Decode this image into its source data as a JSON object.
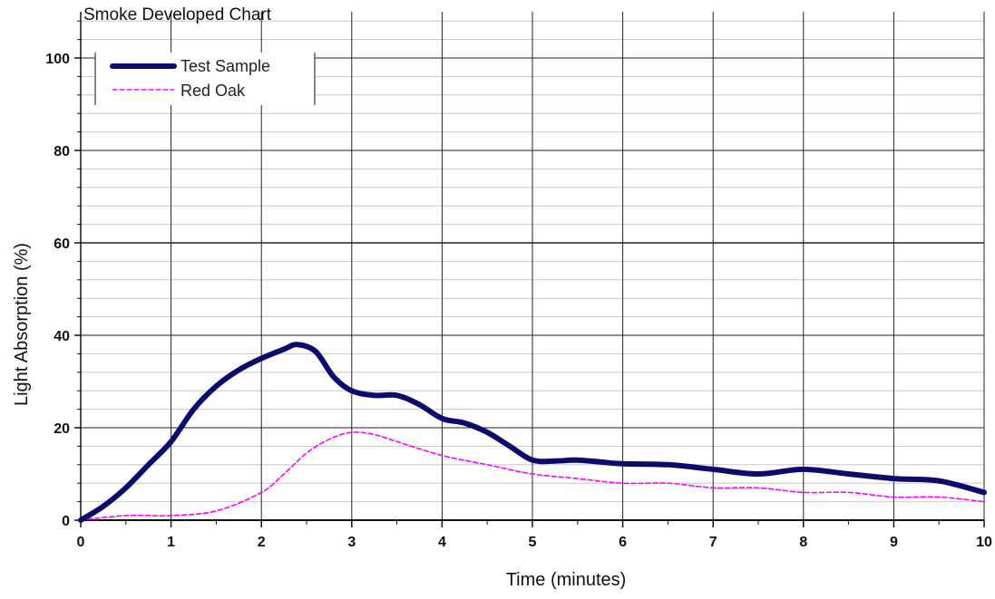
{
  "chart_data": {
    "type": "line",
    "title": "Smoke Developed Chart",
    "xlabel": "Time (minutes)",
    "ylabel": "Light Absorption (%)",
    "xlim": [
      0,
      10
    ],
    "ylim": [
      0,
      100
    ],
    "x_ticks": [
      "0",
      "1",
      "2",
      "3",
      "4",
      "5",
      "6",
      "7",
      "8",
      "9",
      "10"
    ],
    "y_ticks": [
      "0",
      "20",
      "40",
      "60",
      "80",
      "100"
    ],
    "grid": true,
    "legend_position": "top-left",
    "series": [
      {
        "name": "Test Sample",
        "color": "#0b0b6e",
        "style": "solid",
        "points": [
          [
            0,
            0
          ],
          [
            0.25,
            3
          ],
          [
            0.5,
            7
          ],
          [
            0.75,
            12
          ],
          [
            1.0,
            17
          ],
          [
            1.25,
            24
          ],
          [
            1.5,
            29
          ],
          [
            1.75,
            32.5
          ],
          [
            2.0,
            35
          ],
          [
            2.25,
            37
          ],
          [
            2.4,
            38
          ],
          [
            2.6,
            36.5
          ],
          [
            2.8,
            31
          ],
          [
            3.0,
            28
          ],
          [
            3.25,
            27
          ],
          [
            3.5,
            27
          ],
          [
            3.75,
            25
          ],
          [
            4.0,
            22
          ],
          [
            4.25,
            21
          ],
          [
            4.5,
            19
          ],
          [
            4.75,
            16
          ],
          [
            5.0,
            13
          ],
          [
            5.25,
            12.8
          ],
          [
            5.5,
            13
          ],
          [
            5.75,
            12.6
          ],
          [
            6.0,
            12.2
          ],
          [
            6.5,
            12
          ],
          [
            7.0,
            11
          ],
          [
            7.5,
            10
          ],
          [
            8.0,
            11
          ],
          [
            8.5,
            10
          ],
          [
            9.0,
            9
          ],
          [
            9.5,
            8.5
          ],
          [
            10.0,
            6
          ]
        ]
      },
      {
        "name": "Red Oak",
        "color": "#ff00ff",
        "style": "dashed",
        "points": [
          [
            0,
            0
          ],
          [
            0.5,
            1
          ],
          [
            1.0,
            1
          ],
          [
            1.5,
            2
          ],
          [
            2.0,
            6
          ],
          [
            2.25,
            10
          ],
          [
            2.5,
            14.5
          ],
          [
            2.75,
            17.5
          ],
          [
            3.0,
            19
          ],
          [
            3.25,
            18.5
          ],
          [
            3.5,
            17
          ],
          [
            4.0,
            14
          ],
          [
            4.5,
            12
          ],
          [
            5.0,
            10
          ],
          [
            5.5,
            9
          ],
          [
            6.0,
            8
          ],
          [
            6.5,
            8
          ],
          [
            7.0,
            7
          ],
          [
            7.5,
            7
          ],
          [
            8.0,
            6
          ],
          [
            8.5,
            6
          ],
          [
            9.0,
            5
          ],
          [
            9.5,
            5
          ],
          [
            10.0,
            4
          ]
        ]
      }
    ]
  }
}
